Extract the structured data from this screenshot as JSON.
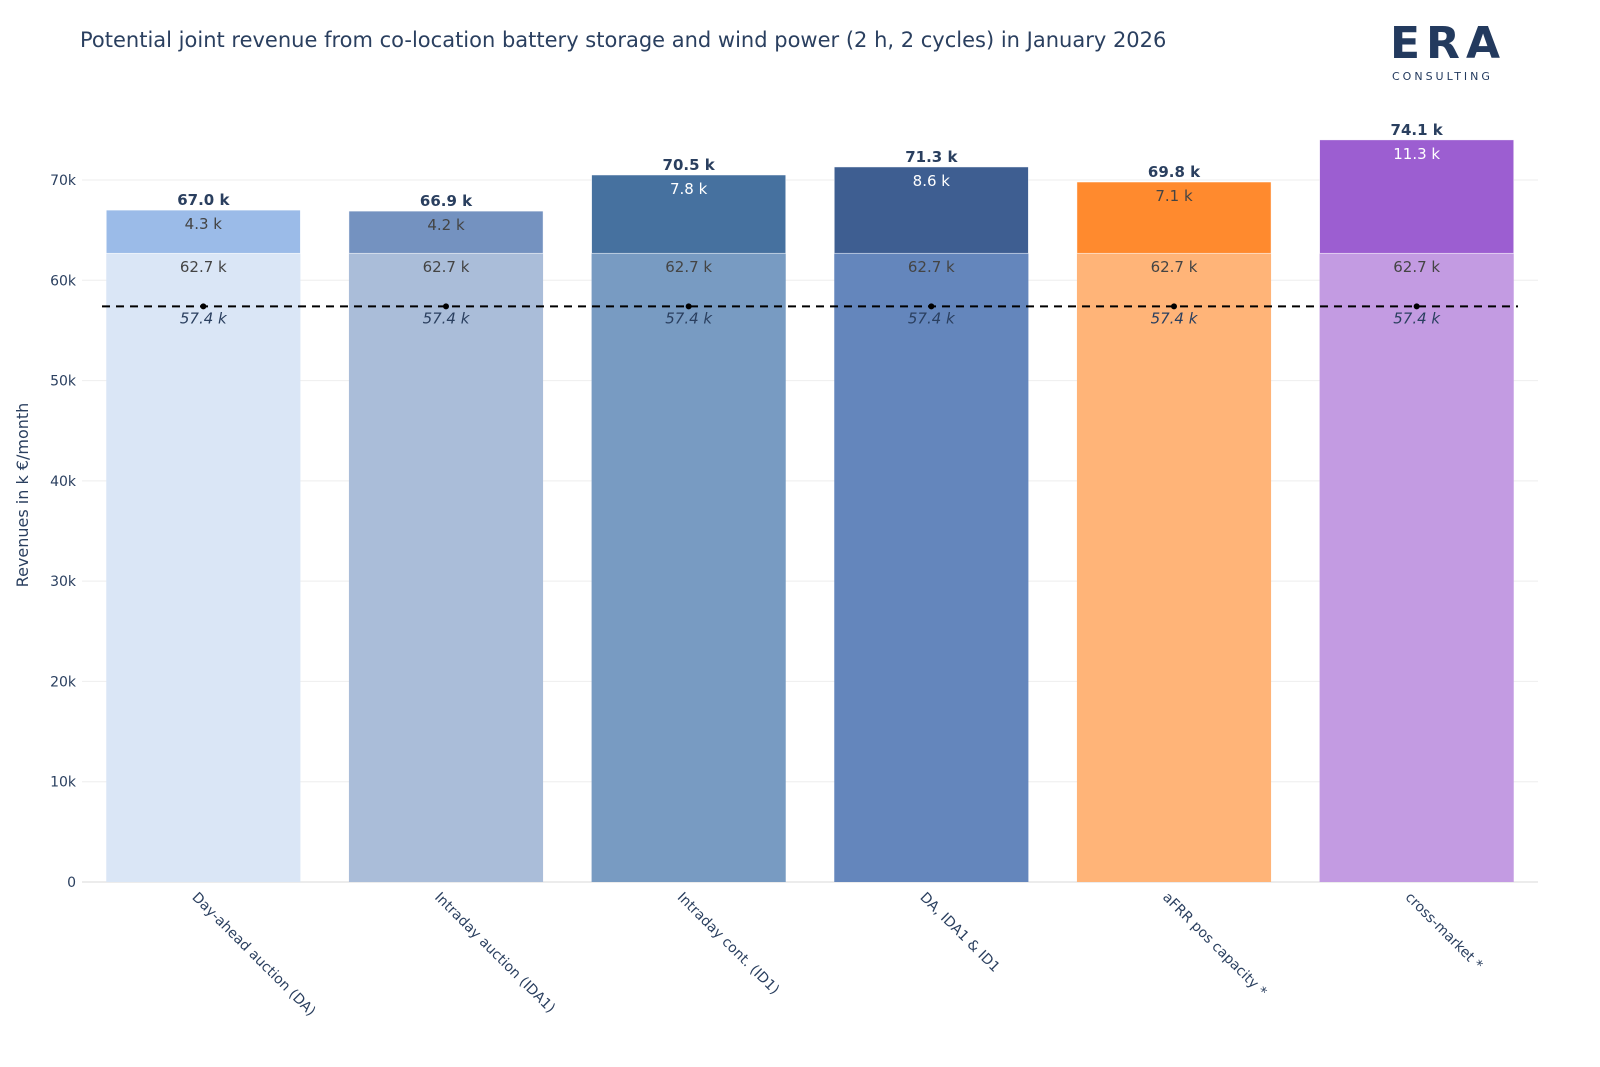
{
  "title": "Potential joint revenue from co-location battery storage and wind power (2 h, 2 cycles) in January 2026",
  "logo": {
    "word": "ERA",
    "sub": "CONSULTING"
  },
  "chart_data": {
    "type": "bar",
    "stacked": true,
    "title": "Potential joint revenue from co-location battery storage and wind power (2 h, 2 cycles) in January 2026",
    "ylabel": "Revenues in k €/month",
    "xlabel": "",
    "ylim": [
      0,
      76000
    ],
    "yticks": [
      0,
      10000,
      20000,
      30000,
      40000,
      50000,
      60000,
      70000
    ],
    "ytick_labels": [
      "0",
      "10k",
      "20k",
      "30k",
      "40k",
      "50k",
      "60k",
      "70k"
    ],
    "grid": true,
    "categories": [
      "Day-ahead auction (DA)",
      "Intraday auction (IDA1)",
      "Intraday cont. (ID1)",
      "DA, IDA1 & ID1",
      "aFRR pos capacity *",
      "cross-market *"
    ],
    "base_values": [
      62700,
      62700,
      62700,
      62700,
      62700,
      62700
    ],
    "base_labels": [
      "62.7 k",
      "62.7 k",
      "62.7 k",
      "62.7 k",
      "62.7 k",
      "62.7 k"
    ],
    "top_values": [
      4300,
      4200,
      7800,
      8600,
      7100,
      11300
    ],
    "top_labels": [
      "4.3 k",
      "4.2 k",
      "7.8 k",
      "8.6 k",
      "7.1 k",
      "11.3 k"
    ],
    "totals": [
      67000,
      66900,
      70500,
      71300,
      69800,
      74100
    ],
    "total_labels": [
      "67.0 k",
      "66.9 k",
      "70.5 k",
      "71.3 k",
      "69.8 k",
      "74.1 k"
    ],
    "reference_line": {
      "value": 57400,
      "label": "57.4 k",
      "style": "dashed"
    },
    "colors": {
      "base": [
        "#dae6f6",
        "#aabdd9",
        "#789bc2",
        "#6486bc",
        "#ffb478",
        "#c39be2"
      ],
      "top": [
        "#9bbbe8",
        "#7492c0",
        "#46719f",
        "#3e5e91",
        "#ff8a2e",
        "#9c5ed1"
      ],
      "top_label_text": [
        "#444444",
        "#444444",
        "#ffffff",
        "#ffffff",
        "#444444",
        "#ffffff"
      ],
      "base_label_text": "#444444",
      "reference_line": "#000000",
      "grid": "#eeeeee"
    }
  }
}
